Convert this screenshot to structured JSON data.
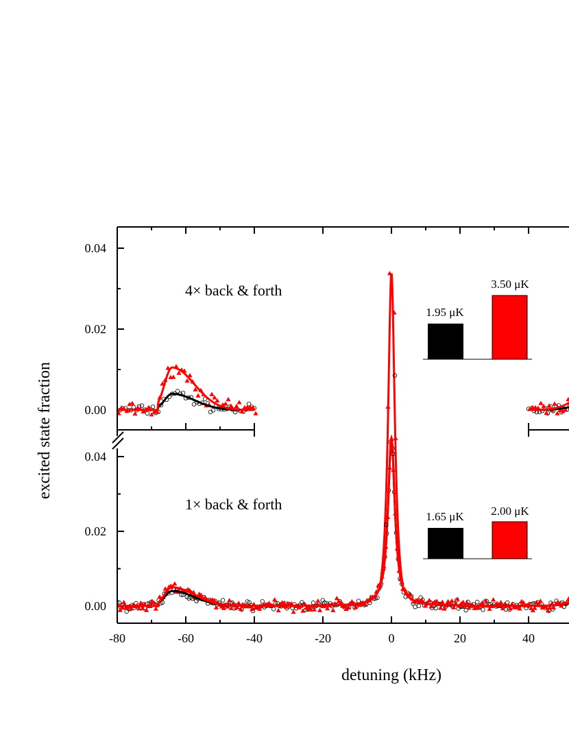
{
  "chart_data": {
    "type": "scatter",
    "xlabel": "detuning (kHz)",
    "ylabel": "excited state fraction",
    "xlim": [
      -80,
      50
    ],
    "x_ticks": [
      "-80",
      "-60",
      "-40",
      "-20",
      "0",
      "20",
      "40"
    ],
    "x_tick_values": [
      -80,
      -60,
      -40,
      -20,
      0,
      20,
      40
    ],
    "y_ticks": [
      "0.00",
      "0.02",
      "0.04"
    ],
    "y_tick_values": [
      0,
      0.02,
      0.04
    ],
    "grid": false,
    "colors": {
      "cold": "#000000",
      "hot": "#ff0000"
    },
    "panels": [
      {
        "id": "top",
        "annotation": "4× back & forth",
        "ylim": [
          -0.005,
          0.045
        ],
        "x_range_shown": [
          [
            -80,
            -40
          ],
          [
            40,
            50
          ]
        ],
        "temperature_bars": {
          "labels": [
            "1.95 μK",
            "3.50 μK"
          ],
          "values": [
            1.95,
            3.5
          ],
          "colors": [
            "#000000",
            "#ff0000"
          ]
        },
        "series": [
          {
            "marker": "open-circle",
            "color": "#000000",
            "fit": "black line",
            "sideband_peak": [
              -64,
              0.004
            ]
          },
          {
            "marker": "filled-triangle",
            "color": "#ff0000",
            "fit": "red line",
            "sideband_peak": [
              -64,
              0.0105
            ]
          }
        ]
      },
      {
        "id": "bottom",
        "annotation": "1× back & forth",
        "ylim": [
          -0.005,
          0.045
        ],
        "x_range_shown": [
          [
            -80,
            50
          ]
        ],
        "temperature_bars": {
          "labels": [
            "1.65 μK",
            "2.00 μK"
          ],
          "values": [
            1.65,
            2.0
          ],
          "colors": [
            "#000000",
            "#ff0000"
          ]
        },
        "series": [
          {
            "marker": "open-circle",
            "color": "#000000",
            "fit": "black line",
            "carrier_peak": [
              0,
              0.045
            ],
            "sideband_peak": [
              -64,
              0.004
            ]
          },
          {
            "marker": "filled-triangle",
            "color": "#ff0000",
            "fit": "red line",
            "carrier_peak": [
              0,
              0.045
            ],
            "sideband_peak": [
              -64,
              0.005
            ]
          }
        ]
      }
    ]
  }
}
